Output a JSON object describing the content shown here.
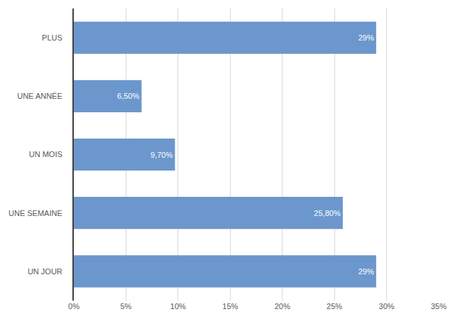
{
  "chart_data": {
    "type": "bar",
    "orientation": "horizontal",
    "categories": [
      "UN JOUR",
      "UNE SEMAINE",
      "UN MOIS",
      "UNE ANNÉE",
      "PLUS"
    ],
    "values": [
      29,
      25.8,
      9.7,
      6.5,
      29
    ],
    "value_labels": [
      "29%",
      "25,80%",
      "9,70%",
      "6,50%",
      "29%"
    ],
    "data_labels": true,
    "color": "#6b97cd",
    "xlim": [
      0,
      35
    ],
    "xticks": [
      {
        "value": 0,
        "label": "0%"
      },
      {
        "value": 5,
        "label": "5%"
      },
      {
        "value": 10,
        "label": "10%"
      },
      {
        "value": 15,
        "label": "15%"
      },
      {
        "value": 20,
        "label": "20%"
      },
      {
        "value": 25,
        "label": "25%"
      },
      {
        "value": 30,
        "label": "30%"
      },
      {
        "value": 35,
        "label": "35%"
      }
    ],
    "grid": true
  }
}
